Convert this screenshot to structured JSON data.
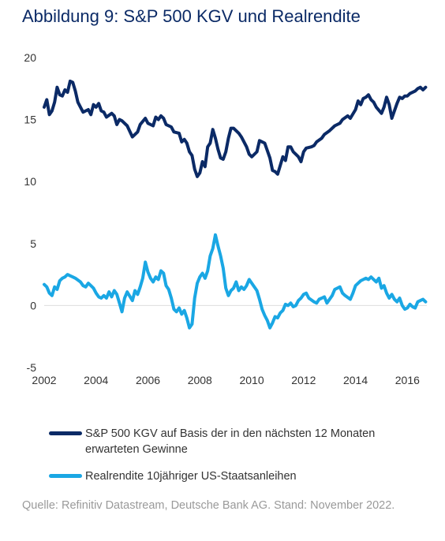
{
  "title": "Abbildung 9: S&P 500 KGV und Realrendite",
  "source": "Quelle: Refinitiv Datastream, Deutsche Bank AG. Stand: November 2022.",
  "colors": {
    "kgv": "#0b2a66",
    "real": "#1aa7e4",
    "zero_line": "#dddddd"
  },
  "chart_data": {
    "type": "line",
    "xlim": [
      2002,
      2016.75
    ],
    "ylim": [
      -5,
      20
    ],
    "xticks": [
      "2002",
      "2004",
      "2006",
      "2008",
      "2010",
      "2012",
      "2014",
      "2016"
    ],
    "yticks": [
      "20",
      "15",
      "10",
      "5",
      "0",
      "-5"
    ],
    "grid": false,
    "legend_position": "bottom",
    "series": [
      {
        "name": "S&P 500 KGV auf Basis der in den nächsten 12 Monaten erwarteten Gewinne",
        "x": [
          2002.0,
          2002.1,
          2002.2,
          2002.3,
          2002.4,
          2002.5,
          2002.6,
          2002.7,
          2002.8,
          2002.9,
          2003.0,
          2003.1,
          2003.2,
          2003.3,
          2003.4,
          2003.5,
          2003.7,
          2003.8,
          2003.9,
          2004.0,
          2004.1,
          2004.2,
          2004.3,
          2004.4,
          2004.6,
          2004.7,
          2004.8,
          2004.9,
          2005.0,
          2005.2,
          2005.4,
          2005.6,
          2005.7,
          2005.9,
          2006.0,
          2006.2,
          2006.3,
          2006.4,
          2006.5,
          2006.6,
          2006.7,
          2006.9,
          2007.0,
          2007.2,
          2007.3,
          2007.4,
          2007.5,
          2007.6,
          2007.7,
          2007.8,
          2007.9,
          2008.0,
          2008.1,
          2008.2,
          2008.3,
          2008.4,
          2008.5,
          2008.6,
          2008.7,
          2008.8,
          2008.9,
          2009.0,
          2009.1,
          2009.2,
          2009.3,
          2009.5,
          2009.6,
          2009.8,
          2009.9,
          2010.0,
          2010.2,
          2010.3,
          2010.4,
          2010.5,
          2010.6,
          2010.7,
          2010.8,
          2010.9,
          2011.0,
          2011.1,
          2011.2,
          2011.3,
          2011.4,
          2011.5,
          2011.6,
          2011.7,
          2011.8,
          2011.9,
          2012.0,
          2012.1,
          2012.3,
          2012.4,
          2012.5,
          2012.7,
          2012.8,
          2013.0,
          2013.2,
          2013.4,
          2013.5,
          2013.7,
          2013.8,
          2014.0,
          2014.1,
          2014.2,
          2014.3,
          2014.4,
          2014.5,
          2014.6,
          2014.7,
          2014.8,
          2015.0,
          2015.1,
          2015.2,
          2015.3,
          2015.4,
          2015.6,
          2015.7,
          2015.8,
          2015.9,
          2016.0,
          2016.1,
          2016.3,
          2016.4,
          2016.5,
          2016.6,
          2016.7
        ],
        "values": [
          16.0,
          16.6,
          15.4,
          15.7,
          16.4,
          17.6,
          17.0,
          16.9,
          17.4,
          17.2,
          18.1,
          18.0,
          17.3,
          16.4,
          16.0,
          15.6,
          15.8,
          15.4,
          16.2,
          16.0,
          16.3,
          15.7,
          15.6,
          15.2,
          15.5,
          15.3,
          14.6,
          15.0,
          14.9,
          14.5,
          13.6,
          14.0,
          14.6,
          15.1,
          14.7,
          14.5,
          15.2,
          15.0,
          15.3,
          15.1,
          14.6,
          14.4,
          14.0,
          13.9,
          13.2,
          13.4,
          13.1,
          12.4,
          12.1,
          11.0,
          10.4,
          10.7,
          11.6,
          11.2,
          12.8,
          13.1,
          14.2,
          13.5,
          12.6,
          11.9,
          11.8,
          12.4,
          13.5,
          14.3,
          14.3,
          13.9,
          13.6,
          12.8,
          12.2,
          12.0,
          12.4,
          13.3,
          13.2,
          13.1,
          12.5,
          11.9,
          10.9,
          10.8,
          10.6,
          11.3,
          12.0,
          11.7,
          12.8,
          12.8,
          12.4,
          12.2,
          12.0,
          11.6,
          12.4,
          12.7,
          12.8,
          12.9,
          13.2,
          13.5,
          13.8,
          14.1,
          14.5,
          14.7,
          15.0,
          15.3,
          15.1,
          15.8,
          16.5,
          16.2,
          16.7,
          16.8,
          17.0,
          16.6,
          16.4,
          16.0,
          15.5,
          16.0,
          16.8,
          16.2,
          15.1,
          16.3,
          16.8,
          16.7,
          16.9,
          16.9,
          17.1,
          17.3,
          17.5,
          17.6,
          17.4,
          17.6
        ]
      },
      {
        "name": "Realrendite 10jähriger US-Staatsanleihen",
        "x": [
          2002.0,
          2002.1,
          2002.2,
          2002.3,
          2002.4,
          2002.5,
          2002.6,
          2002.7,
          2002.8,
          2002.9,
          2003.0,
          2003.1,
          2003.2,
          2003.4,
          2003.5,
          2003.6,
          2003.7,
          2003.8,
          2003.9,
          2004.0,
          2004.1,
          2004.2,
          2004.3,
          2004.4,
          2004.5,
          2004.6,
          2004.7,
          2004.8,
          2004.9,
          2005.0,
          2005.1,
          2005.2,
          2005.4,
          2005.5,
          2005.6,
          2005.7,
          2005.8,
          2005.9,
          2006.0,
          2006.1,
          2006.2,
          2006.3,
          2006.4,
          2006.5,
          2006.6,
          2006.7,
          2006.8,
          2006.9,
          2007.0,
          2007.1,
          2007.2,
          2007.3,
          2007.4,
          2007.5,
          2007.6,
          2007.7,
          2007.8,
          2007.9,
          2008.0,
          2008.1,
          2008.2,
          2008.3,
          2008.4,
          2008.5,
          2008.6,
          2008.7,
          2008.8,
          2008.9,
          2009.0,
          2009.1,
          2009.2,
          2009.3,
          2009.4,
          2009.5,
          2009.6,
          2009.7,
          2009.8,
          2009.9,
          2010.0,
          2010.1,
          2010.2,
          2010.3,
          2010.4,
          2010.5,
          2010.6,
          2010.7,
          2010.8,
          2010.9,
          2011.0,
          2011.1,
          2011.2,
          2011.3,
          2011.4,
          2011.5,
          2011.6,
          2011.7,
          2011.8,
          2011.9,
          2012.0,
          2012.1,
          2012.2,
          2012.4,
          2012.5,
          2012.6,
          2012.7,
          2012.8,
          2012.9,
          2013.0,
          2013.1,
          2013.2,
          2013.4,
          2013.5,
          2013.6,
          2013.8,
          2013.9,
          2014.0,
          2014.2,
          2014.4,
          2014.5,
          2014.6,
          2014.7,
          2014.8,
          2014.9,
          2015.0,
          2015.1,
          2015.2,
          2015.3,
          2015.4,
          2015.5,
          2015.6,
          2015.7,
          2015.8,
          2015.9,
          2016.0,
          2016.1,
          2016.2,
          2016.3,
          2016.4,
          2016.5,
          2016.6,
          2016.7
        ],
        "values": [
          1.7,
          1.5,
          1.0,
          0.8,
          1.5,
          1.3,
          2.0,
          2.2,
          2.3,
          2.5,
          2.4,
          2.3,
          2.2,
          1.9,
          1.6,
          1.5,
          1.8,
          1.6,
          1.4,
          1.0,
          0.7,
          0.6,
          0.8,
          0.6,
          1.1,
          0.7,
          1.2,
          0.9,
          0.2,
          -0.5,
          0.6,
          1.1,
          0.4,
          1.2,
          0.9,
          1.5,
          2.2,
          3.5,
          2.7,
          2.2,
          1.9,
          2.3,
          2.1,
          2.8,
          2.6,
          1.6,
          1.3,
          0.6,
          -0.3,
          -0.5,
          -0.2,
          -0.7,
          -0.4,
          -1.0,
          -1.8,
          -1.5,
          0.6,
          1.8,
          2.3,
          2.6,
          2.2,
          2.8,
          4.0,
          4.6,
          5.7,
          4.8,
          4.0,
          3.0,
          1.4,
          0.8,
          1.2,
          1.4,
          1.9,
          1.2,
          1.5,
          1.3,
          1.6,
          2.1,
          1.8,
          1.5,
          1.2,
          0.5,
          -0.3,
          -0.8,
          -1.2,
          -1.8,
          -1.4,
          -0.9,
          -1.0,
          -0.6,
          -0.4,
          0.1,
          0.0,
          0.2,
          -0.1,
          0.0,
          0.4,
          0.6,
          0.9,
          1.0,
          0.6,
          0.3,
          0.2,
          0.5,
          0.6,
          0.7,
          0.2,
          0.5,
          0.8,
          1.3,
          1.5,
          1.0,
          0.8,
          0.5,
          1.0,
          1.6,
          2.0,
          2.2,
          2.1,
          2.3,
          2.1,
          1.9,
          2.2,
          1.4,
          1.6,
          1.0,
          0.6,
          0.9,
          0.5,
          0.3,
          0.6,
          0.0,
          -0.3,
          -0.2,
          0.1,
          -0.1,
          -0.2,
          0.3,
          0.4,
          0.5,
          0.3
        ]
      }
    ]
  }
}
